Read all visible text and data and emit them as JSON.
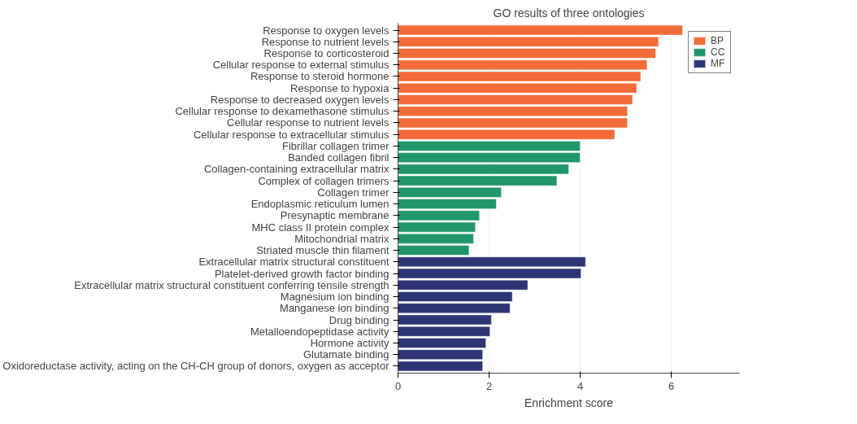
{
  "chart_data": {
    "type": "bar",
    "orientation": "horizontal",
    "title": "GO results of three ontologies",
    "xlabel": "Enrichment score",
    "categories": [
      "Response to oxygen levels",
      "Response to nutrient levels",
      "Response to corticosteroid",
      "Cellular response to external stimulus",
      "Response to steroid hormone",
      "Response to hypoxia",
      "Response to decreased oxygen levels",
      "Cellular response to dexamethasone stimulus",
      "Cellular response to nutrient levels",
      "Cellular response to extracellular stimulus",
      "Fibrillar collagen trimer",
      "Banded collagen fibril",
      "Collagen-containing extracellular matrix",
      "Complex of collagen trimers",
      "Collagen trimer",
      "Endoplasmic reticulum lumen",
      "Presynaptic membrane",
      "MHC class II protein complex",
      "Mitochondrial matrix",
      "Striated muscle thin filament",
      "Extracellular matrix structural constituent",
      "Platelet-derived growth factor binding",
      "Extracellular matrix structural constituent conferring tensile strength",
      "Magnesium ion binding",
      "Manganese ion binding",
      "Drug binding",
      "Metalloendopeptidase activity",
      "Hormone activity",
      "Glutamate binding",
      "Oxidoreductase activity, acting on the CH-CH group of donors, oxygen as acceptor"
    ],
    "series": [
      {
        "name": "BP",
        "color": "#f26b38",
        "values": [
          6.25,
          5.72,
          5.66,
          5.47,
          5.33,
          5.24,
          5.15,
          5.04,
          5.04,
          4.76,
          null,
          null,
          null,
          null,
          null,
          null,
          null,
          null,
          null,
          null,
          null,
          null,
          null,
          null,
          null,
          null,
          null,
          null,
          null,
          null
        ]
      },
      {
        "name": "CC",
        "color": "#21966b",
        "values": [
          null,
          null,
          null,
          null,
          null,
          null,
          null,
          null,
          null,
          null,
          4.0,
          4.0,
          3.75,
          3.49,
          2.27,
          2.16,
          1.79,
          1.7,
          1.66,
          1.56,
          null,
          null,
          null,
          null,
          null,
          null,
          null,
          null,
          null,
          null
        ]
      },
      {
        "name": "MF",
        "color": "#2e3575",
        "values": [
          null,
          null,
          null,
          null,
          null,
          null,
          null,
          null,
          null,
          null,
          null,
          null,
          null,
          null,
          null,
          null,
          null,
          null,
          null,
          null,
          4.12,
          4.02,
          2.85,
          2.51,
          2.46,
          2.05,
          2.02,
          1.93,
          1.86,
          1.86
        ]
      }
    ],
    "xlim": [
      0,
      7.5
    ],
    "xticks": [
      0,
      2,
      4,
      6
    ],
    "grid": "x",
    "legend": "top right"
  }
}
